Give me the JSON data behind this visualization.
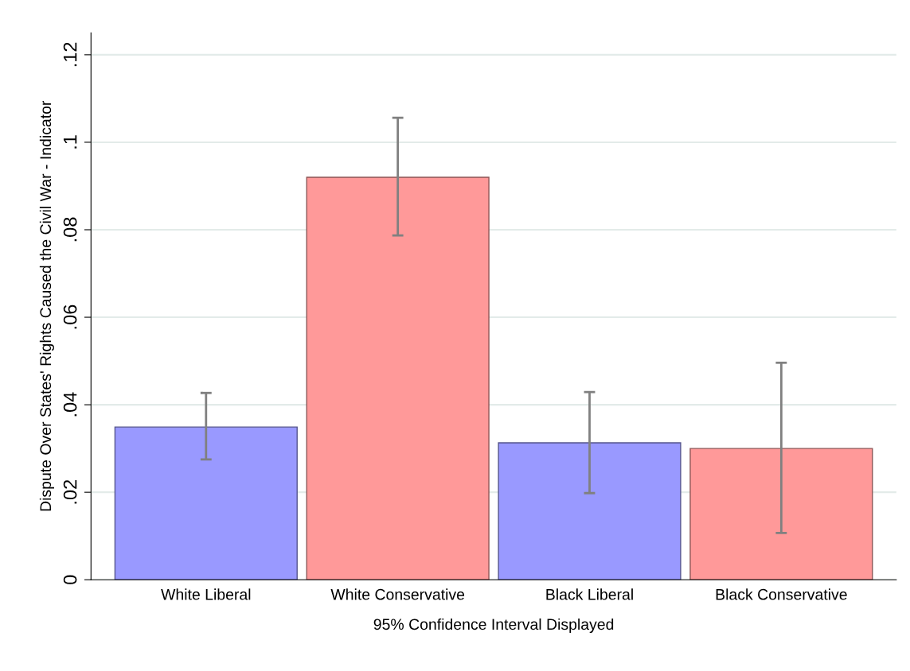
{
  "chart_data": {
    "type": "bar",
    "xlabel": "95% Confidence Interval Displayed",
    "ylabel": "Dispute Over States' Rights Caused the Civil War - Indicator",
    "categories": [
      "White Liberal",
      "White Conservative",
      "Black Liberal",
      "Black Conservative"
    ],
    "values": [
      0.0349,
      0.092,
      0.0313,
      0.03
    ],
    "colors": [
      "#9999ff",
      "#ff9999",
      "#9999ff",
      "#ff9999"
    ],
    "errors": [
      [
        0.0275,
        0.0427
      ],
      [
        0.0787,
        0.1056
      ],
      [
        0.0198,
        0.0429
      ],
      [
        0.0107,
        0.0496
      ]
    ],
    "ylim": [
      0,
      0.125
    ],
    "yticks": [
      0,
      {
        "value": 0.02,
        "label": ".02"
      },
      {
        "value": 0.04,
        "label": ".04"
      },
      {
        "value": 0.06,
        "label": ".06"
      },
      {
        "value": 0.08,
        "label": ".08"
      },
      {
        "value": 0.1,
        "label": ".1"
      },
      {
        "value": 0.12,
        "label": ".12"
      }
    ],
    "grid": "y",
    "legend": false
  }
}
